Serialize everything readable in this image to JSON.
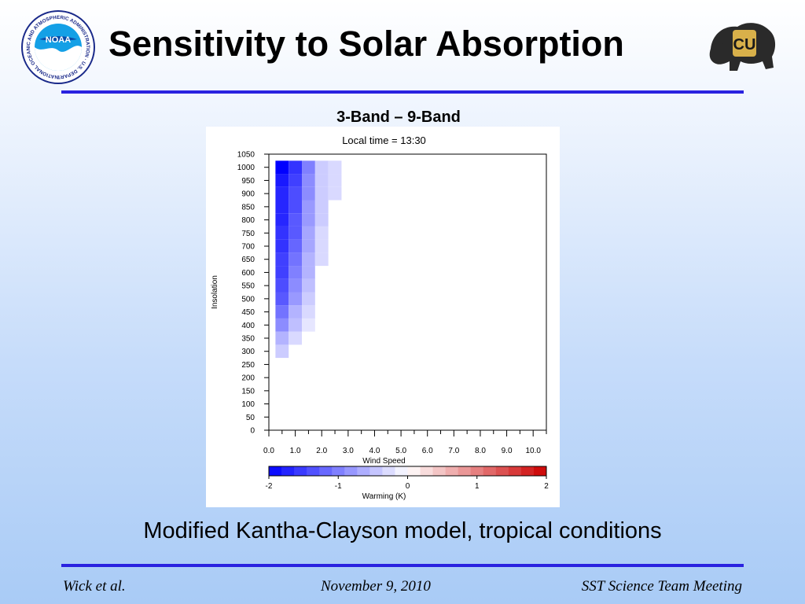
{
  "slide": {
    "title": "Sensitivity to Solar Absorption",
    "chart_heading": "3-Band – 9-Band",
    "caption": "Modified Kantha-Clayson model, tropical conditions"
  },
  "logos": {
    "noaa_badge": "NOAA",
    "noaa_ring": "NATIONAL OCEANIC AND ATMOSPHERIC ADMINISTRATION · U.S. DEPARTMENT OF COMMERCE",
    "cu_monogram": "CU"
  },
  "footer": {
    "author": "Wick et al.",
    "date": "November 9, 2010",
    "meeting": "SST Science Team Meeting"
  },
  "colors": {
    "rule": "#2a22e0",
    "cold_max": "#0000ff",
    "warm_max": "#cc0000"
  },
  "chart_data": {
    "type": "heatmap",
    "title": "Local time = 13:30",
    "xlabel": "Wind Speed",
    "ylabel": "Insolation",
    "xlim": [
      0,
      10.5
    ],
    "ylim": [
      0,
      1050
    ],
    "x_ticks": [
      "0.0",
      "1.0",
      "2.0",
      "3.0",
      "4.0",
      "5.0",
      "6.0",
      "7.0",
      "8.0",
      "9.0",
      "10.0"
    ],
    "y_ticks": [
      "0",
      "50",
      "100",
      "150",
      "200",
      "250",
      "300",
      "350",
      "400",
      "450",
      "500",
      "550",
      "600",
      "650",
      "700",
      "750",
      "800",
      "850",
      "900",
      "950",
      "1000",
      "1050"
    ],
    "x_bins": [
      0.5,
      1.0,
      1.5,
      2.0,
      2.5
    ],
    "y_bins": [
      300,
      350,
      400,
      450,
      500,
      550,
      600,
      650,
      700,
      750,
      800,
      850,
      900,
      950,
      1000
    ],
    "bin_width_x": 0.5,
    "bin_height_y": 50,
    "grid": false,
    "colorbar": {
      "label": "Warming (K)",
      "min": -2,
      "max": 2,
      "ticks": [
        "-2",
        "-1",
        "0",
        "1",
        "2"
      ]
    },
    "cells": [
      [
        0.5,
        300,
        -0.4
      ],
      [
        0.5,
        350,
        -0.6
      ],
      [
        0.5,
        400,
        -0.9
      ],
      [
        0.5,
        450,
        -1.1
      ],
      [
        0.5,
        500,
        -1.3
      ],
      [
        0.5,
        550,
        -1.4
      ],
      [
        0.5,
        600,
        -1.5
      ],
      [
        0.5,
        650,
        -1.5
      ],
      [
        0.5,
        700,
        -1.6
      ],
      [
        0.5,
        750,
        -1.6
      ],
      [
        0.5,
        800,
        -1.7
      ],
      [
        0.5,
        850,
        -1.7
      ],
      [
        0.5,
        900,
        -1.7
      ],
      [
        0.5,
        950,
        -1.8
      ],
      [
        0.5,
        1000,
        -2.0
      ],
      [
        1.0,
        350,
        -0.3
      ],
      [
        1.0,
        400,
        -0.5
      ],
      [
        1.0,
        450,
        -0.6
      ],
      [
        1.0,
        500,
        -0.8
      ],
      [
        1.0,
        550,
        -0.9
      ],
      [
        1.0,
        600,
        -1.0
      ],
      [
        1.0,
        650,
        -1.1
      ],
      [
        1.0,
        700,
        -1.2
      ],
      [
        1.0,
        750,
        -1.3
      ],
      [
        1.0,
        800,
        -1.3
      ],
      [
        1.0,
        850,
        -1.4
      ],
      [
        1.0,
        900,
        -1.4
      ],
      [
        1.0,
        950,
        -1.5
      ],
      [
        1.0,
        1000,
        -1.6
      ],
      [
        1.5,
        400,
        -0.2
      ],
      [
        1.5,
        450,
        -0.3
      ],
      [
        1.5,
        500,
        -0.4
      ],
      [
        1.5,
        550,
        -0.5
      ],
      [
        1.5,
        600,
        -0.6
      ],
      [
        1.5,
        650,
        -0.6
      ],
      [
        1.5,
        700,
        -0.7
      ],
      [
        1.5,
        750,
        -0.7
      ],
      [
        1.5,
        800,
        -0.8
      ],
      [
        1.5,
        850,
        -0.8
      ],
      [
        1.5,
        900,
        -0.9
      ],
      [
        1.5,
        950,
        -0.9
      ],
      [
        1.5,
        1000,
        -1.0
      ],
      [
        2.0,
        650,
        -0.3
      ],
      [
        2.0,
        700,
        -0.3
      ],
      [
        2.0,
        750,
        -0.3
      ],
      [
        2.0,
        800,
        -0.4
      ],
      [
        2.0,
        850,
        -0.4
      ],
      [
        2.0,
        900,
        -0.4
      ],
      [
        2.0,
        950,
        -0.4
      ],
      [
        2.0,
        1000,
        -0.4
      ],
      [
        2.5,
        900,
        -0.3
      ],
      [
        2.5,
        950,
        -0.3
      ],
      [
        2.5,
        1000,
        -0.3
      ]
    ]
  }
}
